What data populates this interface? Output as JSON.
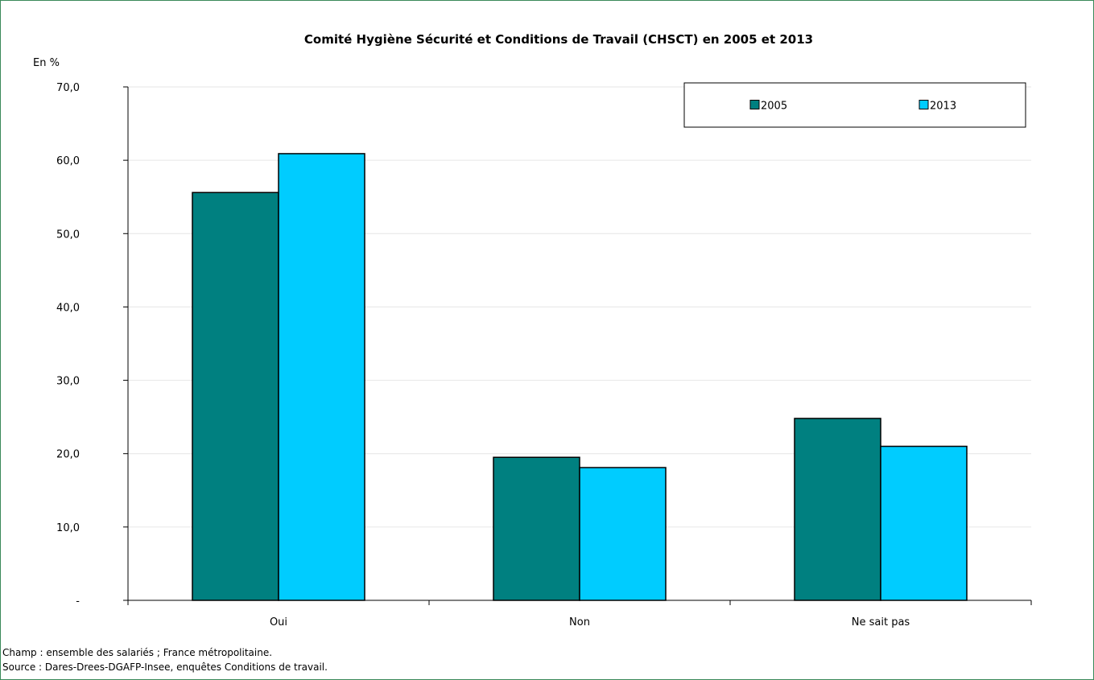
{
  "chart_data": {
    "type": "bar",
    "title": "Comité Hygiène Sécurité et Conditions de Travail (CHSCT) en 2005 et 2013",
    "ylabel": "En %",
    "xlabel": "",
    "categories": [
      "Oui",
      "Non",
      "Ne sait pas"
    ],
    "series": [
      {
        "name": "2005",
        "color": "#008080",
        "values": [
          55.6,
          19.5,
          24.8
        ]
      },
      {
        "name": "2013",
        "color": "#00CCFF",
        "values": [
          60.9,
          18.1,
          21.0
        ]
      }
    ],
    "ylim": [
      0,
      70
    ],
    "yticks": [
      0,
      10,
      20,
      30,
      40,
      50,
      60,
      70
    ],
    "ytick_labels": [
      "-",
      "10,0",
      "20,0",
      "30,0",
      "40,0",
      "50,0",
      "60,0",
      "70,0"
    ],
    "grid": true,
    "legend_position": "top-right"
  },
  "notes": {
    "champ": "Champ : ensemble des salariés ; France métropolitaine.",
    "source": "Source : Dares-Drees-DGAFP-Insee, enquêtes Conditions de travail."
  }
}
